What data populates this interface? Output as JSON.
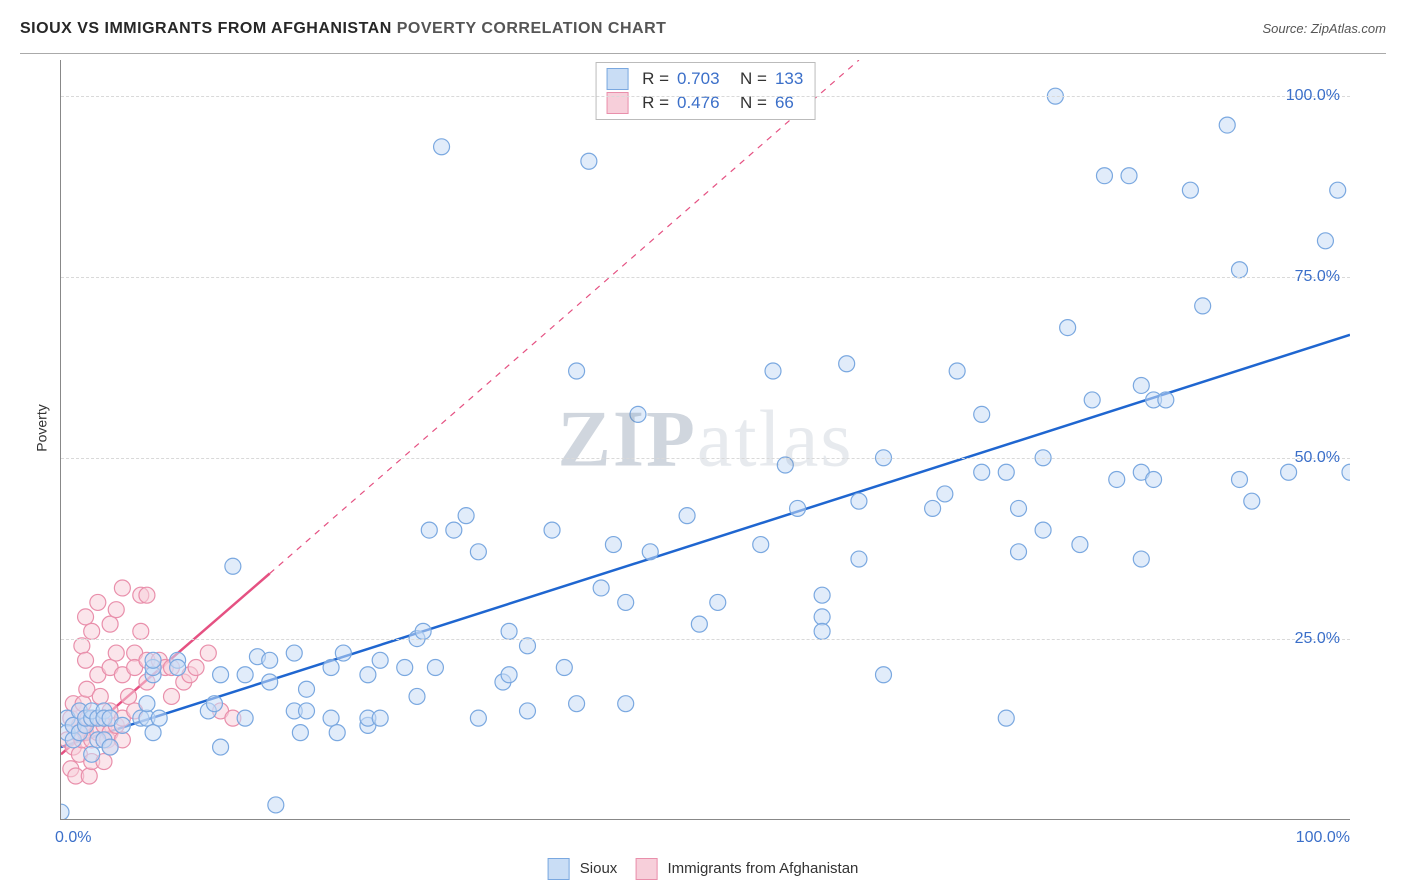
{
  "header": {
    "title1": "SIOUX VS IMMIGRANTS FROM AFGHANISTAN",
    "title2": " POVERTY CORRELATION CHART",
    "source_prefix": "Source: ",
    "source": "ZipAtlas.com"
  },
  "axis": {
    "ylabel": "Poverty",
    "x_min_label": "0.0%",
    "x_max_label": "100.0%",
    "yticks": [
      {
        "label": "25.0%",
        "value": 25
      },
      {
        "label": "50.0%",
        "value": 50
      },
      {
        "label": "75.0%",
        "value": 75
      },
      {
        "label": "100.0%",
        "value": 100
      }
    ],
    "xlim": [
      0,
      105
    ],
    "ylim": [
      0,
      105
    ]
  },
  "colors": {
    "series1_fill": "#c9ddf5",
    "series1_stroke": "#7aa8e0",
    "series1_line": "#1f66d0",
    "series2_fill": "#f7cfda",
    "series2_stroke": "#e98fab",
    "series2_line": "#e55182",
    "grid": "#d9d9d9",
    "axis_text": "#3b6fc9",
    "title_color": "#272727"
  },
  "marker": {
    "radius": 8,
    "stroke_width": 1.2,
    "fill_opacity": 0.55
  },
  "watermark": {
    "part1": "ZIP",
    "part2": "atlas"
  },
  "legend_top": {
    "rows": [
      {
        "swatch": "series1",
        "R_label": "R =",
        "R_value": "0.703",
        "N_label": "N =",
        "N_value": "133"
      },
      {
        "swatch": "series2",
        "R_label": "R =",
        "R_value": "0.476",
        "N_label": "N =",
        "N_value": "66"
      }
    ]
  },
  "legend_bottom": {
    "items": [
      {
        "swatch": "series1",
        "label": "Sioux"
      },
      {
        "swatch": "series2",
        "label": "Immigrants from Afghanistan"
      }
    ]
  },
  "regression_lines": {
    "series1": {
      "x1": 0,
      "y1": 10,
      "x2": 105,
      "y2": 67,
      "dash_ext": null
    },
    "series2": {
      "x1": 0,
      "y1": 9,
      "x2": 17,
      "y2": 34,
      "dash_x2": 65,
      "dash_y2": 105
    }
  },
  "series1_points": [
    [
      0,
      1
    ],
    [
      0.5,
      14
    ],
    [
      0.5,
      12
    ],
    [
      1,
      11
    ],
    [
      1,
      13
    ],
    [
      1.5,
      15
    ],
    [
      1.5,
      12
    ],
    [
      2,
      13
    ],
    [
      2,
      14
    ],
    [
      2.5,
      14
    ],
    [
      2.5,
      9
    ],
    [
      2.5,
      15
    ],
    [
      3,
      11
    ],
    [
      3,
      14
    ],
    [
      3.5,
      15
    ],
    [
      3.5,
      14
    ],
    [
      3.5,
      11
    ],
    [
      4,
      10
    ],
    [
      4,
      14
    ],
    [
      5,
      13
    ],
    [
      6.5,
      14
    ],
    [
      7,
      14
    ],
    [
      7,
      16
    ],
    [
      7.5,
      12
    ],
    [
      7.5,
      20
    ],
    [
      7.5,
      21
    ],
    [
      7.5,
      22
    ],
    [
      8,
      14
    ],
    [
      9.5,
      22
    ],
    [
      9.5,
      21
    ],
    [
      12,
      15
    ],
    [
      12.5,
      16
    ],
    [
      13,
      20
    ],
    [
      13,
      10
    ],
    [
      14,
      35
    ],
    [
      15,
      20
    ],
    [
      15,
      14
    ],
    [
      16,
      22.5
    ],
    [
      17,
      19
    ],
    [
      17,
      22
    ],
    [
      17.5,
      2
    ],
    [
      19,
      15
    ],
    [
      19,
      23
    ],
    [
      19.5,
      12
    ],
    [
      20,
      18
    ],
    [
      20,
      15
    ],
    [
      22,
      21
    ],
    [
      22,
      14
    ],
    [
      22.5,
      12
    ],
    [
      23,
      23
    ],
    [
      25,
      13
    ],
    [
      25,
      20
    ],
    [
      25,
      14
    ],
    [
      26,
      14
    ],
    [
      26,
      22
    ],
    [
      28,
      21
    ],
    [
      29,
      17
    ],
    [
      29,
      25
    ],
    [
      29.5,
      26
    ],
    [
      30,
      40
    ],
    [
      30.5,
      21
    ],
    [
      31,
      93
    ],
    [
      32,
      40
    ],
    [
      33,
      42
    ],
    [
      34,
      37
    ],
    [
      34,
      14
    ],
    [
      36,
      19
    ],
    [
      36.5,
      20
    ],
    [
      36.5,
      26
    ],
    [
      38,
      24
    ],
    [
      38,
      15
    ],
    [
      40,
      40
    ],
    [
      41,
      21
    ],
    [
      42,
      16
    ],
    [
      42,
      62
    ],
    [
      43,
      91
    ],
    [
      44,
      32
    ],
    [
      45,
      38
    ],
    [
      46,
      30
    ],
    [
      46,
      16
    ],
    [
      47,
      56
    ],
    [
      48,
      37
    ],
    [
      51,
      42
    ],
    [
      52,
      27
    ],
    [
      53.5,
      30
    ],
    [
      57,
      38
    ],
    [
      58,
      62
    ],
    [
      59,
      49
    ],
    [
      60,
      43
    ],
    [
      62,
      28
    ],
    [
      62,
      26
    ],
    [
      62,
      31
    ],
    [
      64,
      63
    ],
    [
      65,
      36
    ],
    [
      65,
      44
    ],
    [
      67,
      50
    ],
    [
      67,
      20
    ],
    [
      71,
      43
    ],
    [
      72,
      45
    ],
    [
      73,
      62
    ],
    [
      75,
      48
    ],
    [
      75,
      56
    ],
    [
      77,
      14
    ],
    [
      77,
      48
    ],
    [
      78,
      37
    ],
    [
      78,
      43
    ],
    [
      80,
      50
    ],
    [
      80,
      40
    ],
    [
      81,
      100
    ],
    [
      82,
      68
    ],
    [
      83,
      38
    ],
    [
      84,
      58
    ],
    [
      85,
      89
    ],
    [
      86,
      47
    ],
    [
      87,
      89
    ],
    [
      88,
      48
    ],
    [
      88,
      36
    ],
    [
      88,
      60
    ],
    [
      89,
      58
    ],
    [
      89,
      47
    ],
    [
      90,
      58
    ],
    [
      92,
      87
    ],
    [
      93,
      71
    ],
    [
      95,
      96
    ],
    [
      96,
      47
    ],
    [
      96,
      76
    ],
    [
      97,
      44
    ],
    [
      100,
      48
    ],
    [
      103,
      80
    ],
    [
      104,
      87
    ],
    [
      105,
      48
    ]
  ],
  "series2_points": [
    [
      0.5,
      11
    ],
    [
      0.8,
      7
    ],
    [
      0.8,
      14
    ],
    [
      1,
      13
    ],
    [
      1,
      10
    ],
    [
      1,
      16
    ],
    [
      1.2,
      6
    ],
    [
      1.5,
      13
    ],
    [
      1.5,
      12
    ],
    [
      1.5,
      9
    ],
    [
      1.5,
      15
    ],
    [
      1.7,
      24
    ],
    [
      1.7,
      11
    ],
    [
      1.8,
      16
    ],
    [
      2,
      13
    ],
    [
      2,
      12
    ],
    [
      2,
      22
    ],
    [
      2,
      28
    ],
    [
      2.1,
      18
    ],
    [
      2.2,
      14
    ],
    [
      2.3,
      6
    ],
    [
      2.5,
      14
    ],
    [
      2.5,
      11
    ],
    [
      2.5,
      8
    ],
    [
      2.5,
      26
    ],
    [
      3,
      14
    ],
    [
      3,
      12
    ],
    [
      3,
      20
    ],
    [
      3,
      30
    ],
    [
      3.2,
      17
    ],
    [
      3.5,
      14
    ],
    [
      3.5,
      11
    ],
    [
      3.5,
      8
    ],
    [
      3.5,
      13
    ],
    [
      3.8,
      11
    ],
    [
      4,
      21
    ],
    [
      4,
      27
    ],
    [
      4,
      15
    ],
    [
      4,
      12
    ],
    [
      4,
      10
    ],
    [
      4.5,
      29
    ],
    [
      4.5,
      23
    ],
    [
      4.5,
      13
    ],
    [
      5,
      14
    ],
    [
      5,
      11
    ],
    [
      5,
      20
    ],
    [
      5,
      32
    ],
    [
      5.5,
      17
    ],
    [
      6,
      15
    ],
    [
      6,
      23
    ],
    [
      6,
      21
    ],
    [
      6.5,
      26
    ],
    [
      6.5,
      31
    ],
    [
      7,
      31
    ],
    [
      7,
      22
    ],
    [
      7,
      19
    ],
    [
      8,
      22
    ],
    [
      8.5,
      21
    ],
    [
      9,
      21
    ],
    [
      9,
      17
    ],
    [
      10,
      19
    ],
    [
      10.5,
      20
    ],
    [
      11,
      21
    ],
    [
      12,
      23
    ],
    [
      13,
      15
    ],
    [
      14,
      14
    ]
  ]
}
